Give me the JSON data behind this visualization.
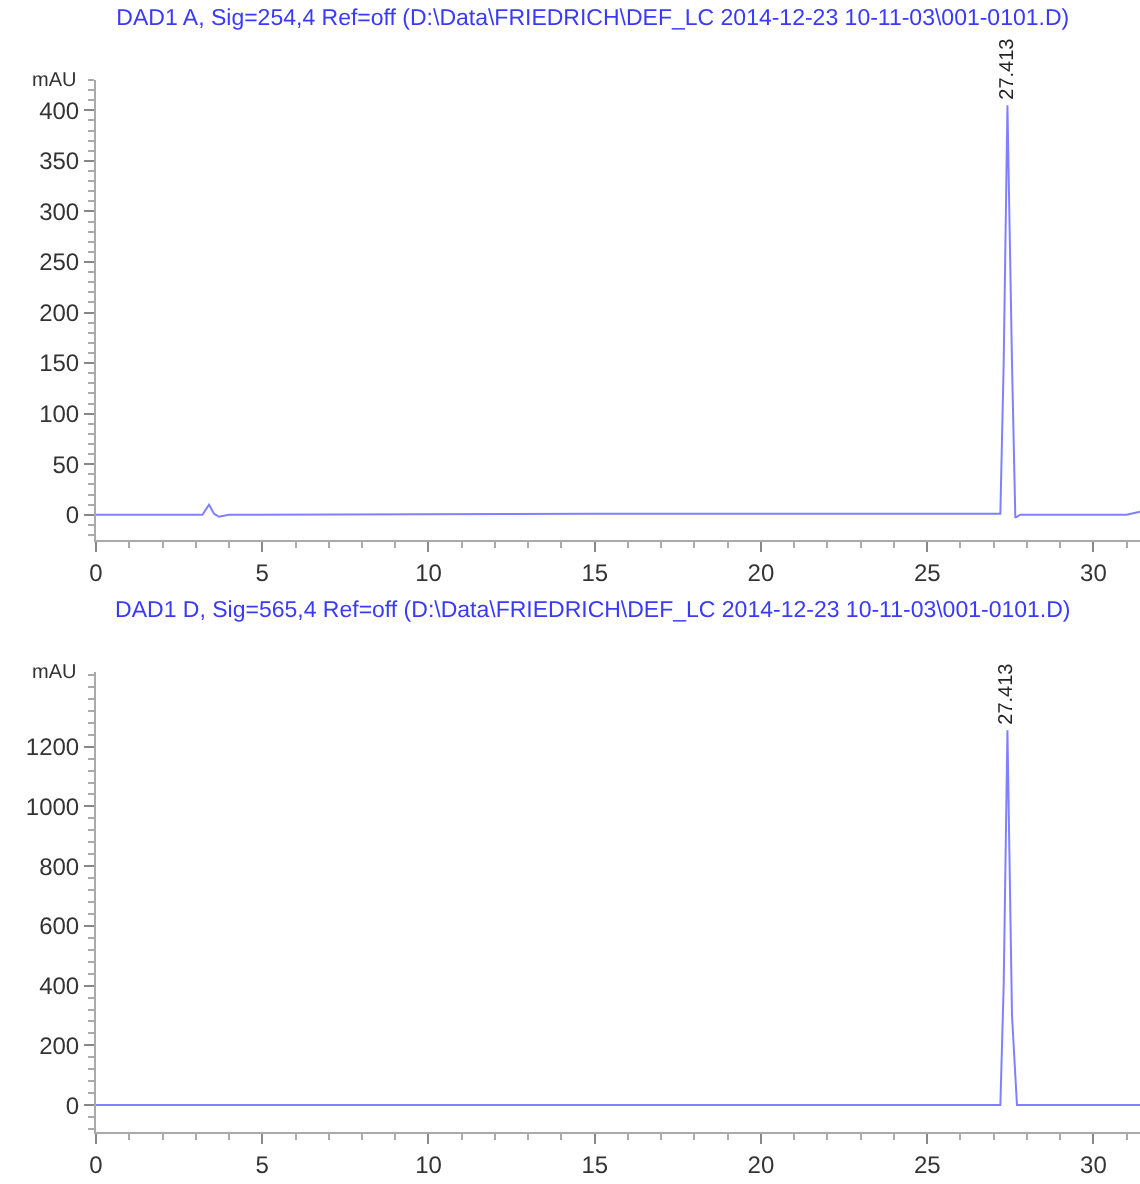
{
  "chart_data": [
    {
      "type": "line",
      "title": "DAD1 A, Sig=254,4 Ref=off (D:\\Data\\FRIEDRICH\\DEF_LC 2014-12-23 10-11-03\\001-0101.D)",
      "ylabel": "mAU",
      "xlim": [
        0,
        31.4
      ],
      "xticks": [
        0,
        5,
        10,
        15,
        20,
        25,
        30
      ],
      "ylim": [
        -25,
        430
      ],
      "yticks": [
        0,
        50,
        100,
        150,
        200,
        250,
        300,
        350,
        400
      ],
      "grid": false,
      "marker": "none",
      "line_style": "solid",
      "series": [
        {
          "color": "#8080ff",
          "x": [
            0,
            3.2,
            3.4,
            3.55,
            3.7,
            4,
            15,
            27.2,
            27.3,
            27.413,
            27.55,
            27.65,
            27.8,
            31,
            31.4
          ],
          "values": [
            0,
            0,
            10,
            1,
            -2,
            0,
            1,
            1,
            150,
            405,
            150,
            -3,
            0,
            0,
            3
          ]
        }
      ],
      "annotations": [
        {
          "text": "27.413",
          "x": 27.413,
          "y": 405
        }
      ]
    },
    {
      "type": "line",
      "title": "DAD1 D, Sig=565,4 Ref=off (D:\\Data\\FRIEDRICH\\DEF_LC 2014-12-23 10-11-03\\001-0101.D)",
      "ylabel": "mAU",
      "xlim": [
        0,
        31.4
      ],
      "xticks": [
        0,
        5,
        10,
        15,
        20,
        25,
        30
      ],
      "ylim": [
        -90,
        1450
      ],
      "yticks": [
        0,
        200,
        400,
        600,
        800,
        1000,
        1200
      ],
      "grid": false,
      "marker": "none",
      "line_style": "solid",
      "series": [
        {
          "color": "#8080ff",
          "x": [
            0,
            27.2,
            27.3,
            27.413,
            27.55,
            27.7,
            28,
            31.4
          ],
          "values": [
            0,
            0,
            400,
            1255,
            300,
            0,
            0,
            0
          ]
        }
      ],
      "annotations": [
        {
          "text": "27.413",
          "x": 27.413,
          "y": 1255
        }
      ]
    }
  ]
}
